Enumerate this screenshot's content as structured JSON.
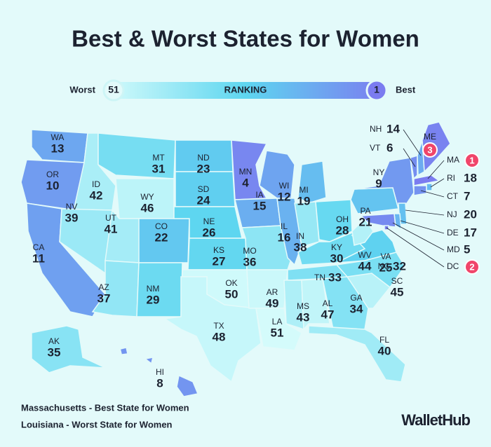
{
  "title": "Best & Worst States for Women",
  "legend": {
    "worst_label": "Worst",
    "title": "RANKING",
    "best_label": "Best",
    "worst_rank": 51,
    "best_rank": 1
  },
  "states": [
    {
      "abbr": "WA",
      "rank": 13
    },
    {
      "abbr": "OR",
      "rank": 10
    },
    {
      "abbr": "CA",
      "rank": 11
    },
    {
      "abbr": "ID",
      "rank": 42
    },
    {
      "abbr": "NV",
      "rank": 39
    },
    {
      "abbr": "MT",
      "rank": 31
    },
    {
      "abbr": "WY",
      "rank": 46
    },
    {
      "abbr": "UT",
      "rank": 41
    },
    {
      "abbr": "AZ",
      "rank": 37
    },
    {
      "abbr": "CO",
      "rank": 22
    },
    {
      "abbr": "NM",
      "rank": 29
    },
    {
      "abbr": "ND",
      "rank": 23
    },
    {
      "abbr": "SD",
      "rank": 24
    },
    {
      "abbr": "NE",
      "rank": 26
    },
    {
      "abbr": "KS",
      "rank": 27
    },
    {
      "abbr": "OK",
      "rank": 50
    },
    {
      "abbr": "TX",
      "rank": 48
    },
    {
      "abbr": "MN",
      "rank": 4
    },
    {
      "abbr": "IA",
      "rank": 15
    },
    {
      "abbr": "MO",
      "rank": 36
    },
    {
      "abbr": "AR",
      "rank": 49
    },
    {
      "abbr": "LA",
      "rank": 51
    },
    {
      "abbr": "WI",
      "rank": 12
    },
    {
      "abbr": "IL",
      "rank": 16
    },
    {
      "abbr": "MI",
      "rank": 19
    },
    {
      "abbr": "IN",
      "rank": 38
    },
    {
      "abbr": "OH",
      "rank": 28
    },
    {
      "abbr": "KY",
      "rank": 30
    },
    {
      "abbr": "TN",
      "rank": 33
    },
    {
      "abbr": "MS",
      "rank": 43
    },
    {
      "abbr": "AL",
      "rank": 47
    },
    {
      "abbr": "GA",
      "rank": 34
    },
    {
      "abbr": "FL",
      "rank": 40
    },
    {
      "abbr": "SC",
      "rank": 45
    },
    {
      "abbr": "NC",
      "rank": 32
    },
    {
      "abbr": "VA",
      "rank": 25
    },
    {
      "abbr": "WV",
      "rank": 44
    },
    {
      "abbr": "PA",
      "rank": 21
    },
    {
      "abbr": "NY",
      "rank": 9
    },
    {
      "abbr": "NJ",
      "rank": 20
    },
    {
      "abbr": "DE",
      "rank": 17
    },
    {
      "abbr": "MD",
      "rank": 5
    },
    {
      "abbr": "DC",
      "rank": 2
    },
    {
      "abbr": "VT",
      "rank": 6
    },
    {
      "abbr": "NH",
      "rank": 14
    },
    {
      "abbr": "ME",
      "rank": 3
    },
    {
      "abbr": "MA",
      "rank": 1
    },
    {
      "abbr": "RI",
      "rank": 18
    },
    {
      "abbr": "CT",
      "rank": 7
    },
    {
      "abbr": "AK",
      "rank": 35
    },
    {
      "abbr": "HI",
      "rank": 8
    }
  ],
  "footer": {
    "best": "Massachusetts - Best State for Women",
    "worst": "Louisiana - Worst State for Women",
    "brand": "WalletHub"
  }
}
